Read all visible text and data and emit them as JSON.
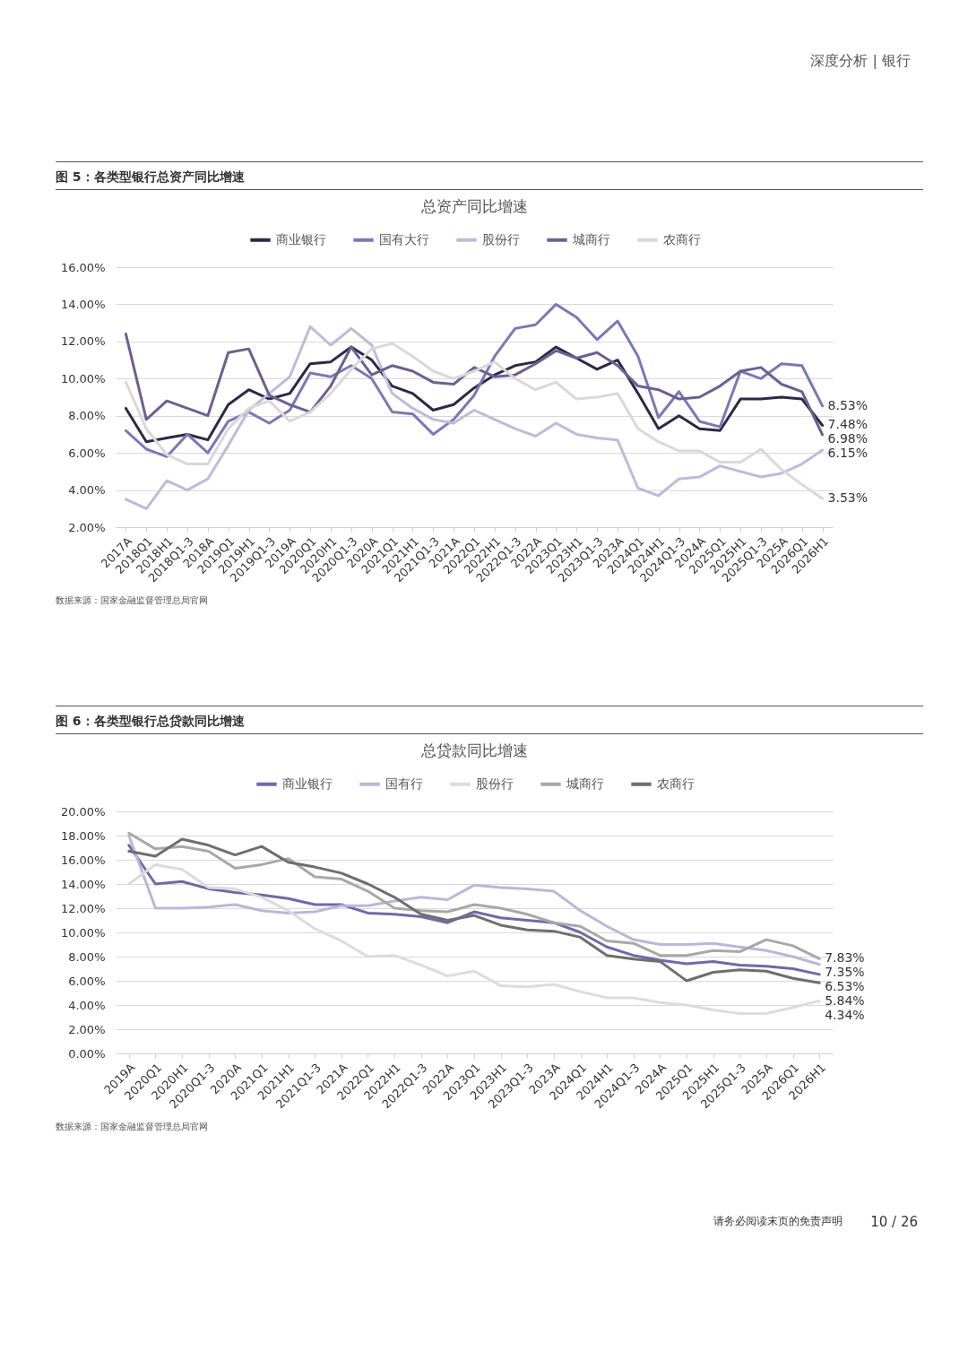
{
  "chart_data": [
    {
      "type": "line",
      "title": "图 5：各类型银行总资产同比增速",
      "subtitle": "总资产同比增速",
      "categories": [
        "2017A",
        "2018Q1",
        "2018H1",
        "2018Q1-3",
        "2018A",
        "2019Q1",
        "2019H1",
        "2019Q1-3",
        "2019A",
        "2020Q1",
        "2020H1",
        "2020Q1-3",
        "2020A",
        "2021Q1",
        "2021H1",
        "2021Q1-3",
        "2021A",
        "2022Q1",
        "2022H1",
        "2022Q1-3",
        "2022A",
        "2023Q1",
        "2023H1",
        "2023Q1-3",
        "2023A",
        "2024Q1",
        "2024H1",
        "2024Q1-3",
        "2024A",
        "2025Q1",
        "2025H1",
        "2025Q1-3",
        "2025A",
        "2026Q1",
        "2026H1"
      ],
      "series": [
        {
          "name": "商业银行",
          "color": "#2b2a45",
          "values": [
            8.4,
            6.6,
            6.8,
            7.0,
            6.7,
            8.6,
            9.4,
            8.9,
            9.2,
            10.8,
            10.9,
            11.7,
            11.0,
            9.6,
            9.2,
            8.3,
            8.6,
            9.5,
            10.2,
            10.7,
            10.9,
            11.7,
            11.1,
            10.5,
            11.0,
            9.2,
            7.3,
            8.0,
            7.3,
            7.2,
            8.9,
            8.9,
            9.0,
            8.9,
            7.48
          ],
          "value_labels": [
            null,
            null,
            null,
            null,
            null,
            null,
            null,
            null,
            null,
            null,
            null,
            null,
            null,
            null,
            null,
            null,
            null,
            null,
            null,
            null,
            null,
            null,
            null,
            null,
            null,
            null,
            null,
            null,
            null,
            null,
            null,
            null,
            null,
            null,
            "7.48%"
          ]
        },
        {
          "name": "国有大行",
          "color": "#7b78b5",
          "values": [
            7.2,
            6.2,
            5.8,
            7.0,
            6.0,
            7.7,
            8.2,
            7.6,
            8.3,
            10.3,
            10.1,
            10.7,
            10.0,
            8.2,
            8.1,
            7.0,
            7.8,
            9.1,
            11.2,
            12.7,
            12.9,
            14.0,
            13.3,
            12.1,
            13.1,
            11.2,
            7.9,
            9.3,
            7.7,
            7.4,
            10.4,
            10.0,
            10.8,
            10.7,
            8.53
          ],
          "value_labels": [
            null,
            null,
            null,
            null,
            null,
            null,
            null,
            null,
            null,
            null,
            null,
            null,
            null,
            null,
            null,
            null,
            null,
            null,
            null,
            null,
            null,
            null,
            null,
            null,
            null,
            null,
            null,
            null,
            null,
            null,
            null,
            null,
            null,
            null,
            "8.53%"
          ]
        },
        {
          "name": "股份行",
          "color": "#bcbcda",
          "values": [
            3.5,
            3.0,
            4.5,
            4.0,
            4.6,
            6.4,
            8.3,
            9.2,
            10.1,
            12.8,
            11.8,
            12.7,
            11.8,
            9.2,
            8.4,
            7.8,
            7.6,
            8.3,
            7.8,
            7.3,
            6.9,
            7.6,
            7.0,
            6.8,
            6.7,
            4.1,
            3.7,
            4.6,
            4.7,
            5.3,
            5.0,
            4.7,
            4.9,
            5.4,
            6.15
          ],
          "value_labels": [
            null,
            null,
            null,
            null,
            null,
            null,
            null,
            null,
            null,
            null,
            null,
            null,
            null,
            null,
            null,
            null,
            null,
            null,
            null,
            null,
            null,
            null,
            null,
            null,
            null,
            null,
            null,
            null,
            null,
            null,
            null,
            null,
            null,
            null,
            "6.15%"
          ]
        },
        {
          "name": "城商行",
          "color": "#6d5f92",
          "values": [
            12.4,
            7.8,
            8.8,
            8.4,
            8.0,
            11.4,
            11.6,
            9.1,
            8.6,
            8.2,
            9.6,
            11.7,
            10.2,
            10.7,
            10.4,
            9.8,
            9.7,
            10.6,
            10.1,
            10.2,
            10.8,
            11.5,
            11.1,
            11.4,
            10.7,
            9.6,
            9.4,
            8.9,
            9.0,
            9.6,
            10.4,
            10.6,
            9.7,
            9.3,
            6.98
          ],
          "value_labels": [
            null,
            null,
            null,
            null,
            null,
            null,
            null,
            null,
            null,
            null,
            null,
            null,
            null,
            null,
            null,
            null,
            null,
            null,
            null,
            null,
            null,
            null,
            null,
            null,
            null,
            null,
            null,
            null,
            null,
            null,
            null,
            null,
            null,
            null,
            "6.98%"
          ]
        },
        {
          "name": "农商行",
          "color": "#d9d9d9",
          "values": [
            9.8,
            7.3,
            5.9,
            5.4,
            5.4,
            7.3,
            8.4,
            8.8,
            7.7,
            8.2,
            9.2,
            10.5,
            11.6,
            11.9,
            11.2,
            10.4,
            10.0,
            10.4,
            10.9,
            10.0,
            9.4,
            9.8,
            8.9,
            9.0,
            9.2,
            7.3,
            6.6,
            6.1,
            6.1,
            5.5,
            5.5,
            6.2,
            5.1,
            4.3,
            3.53
          ],
          "value_labels": [
            null,
            null,
            null,
            null,
            null,
            null,
            null,
            null,
            null,
            null,
            null,
            null,
            null,
            null,
            null,
            null,
            null,
            null,
            null,
            null,
            null,
            null,
            null,
            null,
            null,
            null,
            null,
            null,
            null,
            null,
            null,
            null,
            null,
            null,
            "3.53%"
          ]
        }
      ],
      "ylim": [
        2,
        16
      ],
      "yticks": [
        {
          "value": 2,
          "label": "2.00%"
        },
        {
          "value": 4,
          "label": "4.00%"
        },
        {
          "value": 6,
          "label": "6.00%"
        },
        {
          "value": 8,
          "label": "8.00%"
        },
        {
          "value": 10,
          "label": "10.00%"
        },
        {
          "value": 12,
          "label": "12.00%"
        },
        {
          "value": 14,
          "label": "14.00%"
        },
        {
          "value": 16,
          "label": "16.00%"
        }
      ],
      "grid": "y",
      "legend": "top",
      "annotations": [
        "深度分析 | 银行",
        "数据来源：国家金融监督管理总局官网"
      ]
    },
    {
      "type": "line",
      "title": "图 6：各类型银行总贷款同比增速",
      "subtitle": "总贷款同比增速",
      "categories": [
        "2019A",
        "2020Q1",
        "2020H1",
        "2020Q1-3",
        "2020A",
        "2021Q1",
        "2021H1",
        "2021Q1-3",
        "2021A",
        "2022Q1",
        "2022H1",
        "2022Q1-3",
        "2022A",
        "2023Q1",
        "2023H1",
        "2023Q1-3",
        "2023A",
        "2024Q1",
        "2024H1",
        "2024Q1-3",
        "2024A",
        "2025Q1",
        "2025H1",
        "2025Q1-3",
        "2025A",
        "2026Q1",
        "2026H1"
      ],
      "series": [
        {
          "name": "商业银行",
          "color": "#6e6aa8",
          "values": [
            17.2,
            14.0,
            14.2,
            13.6,
            13.3,
            13.1,
            12.8,
            12.3,
            12.3,
            11.6,
            11.5,
            11.3,
            10.8,
            11.7,
            11.2,
            11.0,
            10.8,
            10.0,
            8.8,
            8.1,
            7.7,
            7.4,
            7.6,
            7.3,
            7.2,
            7.0,
            6.53
          ],
          "value_labels": [
            null,
            null,
            null,
            null,
            null,
            null,
            null,
            null,
            null,
            null,
            null,
            null,
            null,
            null,
            null,
            null,
            null,
            null,
            null,
            null,
            null,
            null,
            null,
            null,
            null,
            null,
            "6.53%"
          ]
        },
        {
          "name": "国有行",
          "color": "#b9b8d8",
          "values": [
            18.0,
            12.0,
            12.0,
            12.1,
            12.3,
            11.8,
            11.6,
            11.7,
            12.2,
            12.2,
            12.6,
            12.9,
            12.7,
            13.9,
            13.7,
            13.6,
            13.4,
            11.8,
            10.5,
            9.4,
            9.0,
            9.0,
            9.1,
            8.8,
            8.5,
            8.0,
            7.35
          ],
          "value_labels": [
            null,
            null,
            null,
            null,
            null,
            null,
            null,
            null,
            null,
            null,
            null,
            null,
            null,
            null,
            null,
            null,
            null,
            null,
            null,
            null,
            null,
            null,
            null,
            null,
            null,
            null,
            "7.35%"
          ]
        },
        {
          "name": "股份行",
          "color": "#dcdcdc",
          "values": [
            14.0,
            15.6,
            15.2,
            13.7,
            13.6,
            12.9,
            11.8,
            10.3,
            9.3,
            8.0,
            8.1,
            7.3,
            6.4,
            6.8,
            5.6,
            5.5,
            5.7,
            5.1,
            4.6,
            4.6,
            4.2,
            4.0,
            3.6,
            3.3,
            3.3,
            3.8,
            4.34
          ],
          "value_labels": [
            null,
            null,
            null,
            null,
            null,
            null,
            null,
            null,
            null,
            null,
            null,
            null,
            null,
            null,
            null,
            null,
            null,
            null,
            null,
            null,
            null,
            null,
            null,
            null,
            null,
            null,
            "4.34%"
          ]
        },
        {
          "name": "城商行",
          "color": "#a8a8a8",
          "values": [
            18.2,
            16.9,
            17.1,
            16.7,
            15.3,
            15.6,
            16.1,
            14.6,
            14.4,
            13.4,
            12.0,
            11.8,
            11.7,
            12.3,
            12.0,
            11.5,
            10.8,
            10.5,
            9.3,
            9.1,
            8.1,
            8.1,
            8.5,
            8.4,
            9.4,
            8.9,
            7.83
          ],
          "value_labels": [
            null,
            null,
            null,
            null,
            null,
            null,
            null,
            null,
            null,
            null,
            null,
            null,
            null,
            null,
            null,
            null,
            null,
            null,
            null,
            null,
            null,
            null,
            null,
            null,
            null,
            null,
            "7.83%"
          ]
        },
        {
          "name": "农商行",
          "color": "#6e6e6e",
          "values": [
            16.7,
            16.3,
            17.7,
            17.2,
            16.4,
            17.1,
            15.8,
            15.4,
            14.9,
            14.0,
            12.9,
            11.5,
            11.0,
            11.4,
            10.6,
            10.2,
            10.1,
            9.6,
            8.1,
            7.8,
            7.6,
            6.0,
            6.7,
            6.9,
            6.8,
            6.2,
            5.84
          ],
          "value_labels": [
            null,
            null,
            null,
            null,
            null,
            null,
            null,
            null,
            null,
            null,
            null,
            null,
            null,
            null,
            null,
            null,
            null,
            null,
            null,
            null,
            null,
            null,
            null,
            null,
            null,
            null,
            "5.84%"
          ]
        }
      ],
      "ylim": [
        0,
        20
      ],
      "yticks": [
        {
          "value": 0,
          "label": "0.00%"
        },
        {
          "value": 2,
          "label": "2.00%"
        },
        {
          "value": 4,
          "label": "4.00%"
        },
        {
          "value": 6,
          "label": "6.00%"
        },
        {
          "value": 8,
          "label": "8.00%"
        },
        {
          "value": 10,
          "label": "10.00%"
        },
        {
          "value": 12,
          "label": "12.00%"
        },
        {
          "value": 14,
          "label": "14.00%"
        },
        {
          "value": 16,
          "label": "16.00%"
        },
        {
          "value": 18,
          "label": "18.00%"
        },
        {
          "value": 20,
          "label": "20.00%"
        }
      ],
      "grid": "y",
      "legend": "top",
      "annotations": [
        "数据来源：国家金融监督管理总局官网",
        "请务必阅读末页的免责声明",
        "10 / 26"
      ]
    }
  ]
}
